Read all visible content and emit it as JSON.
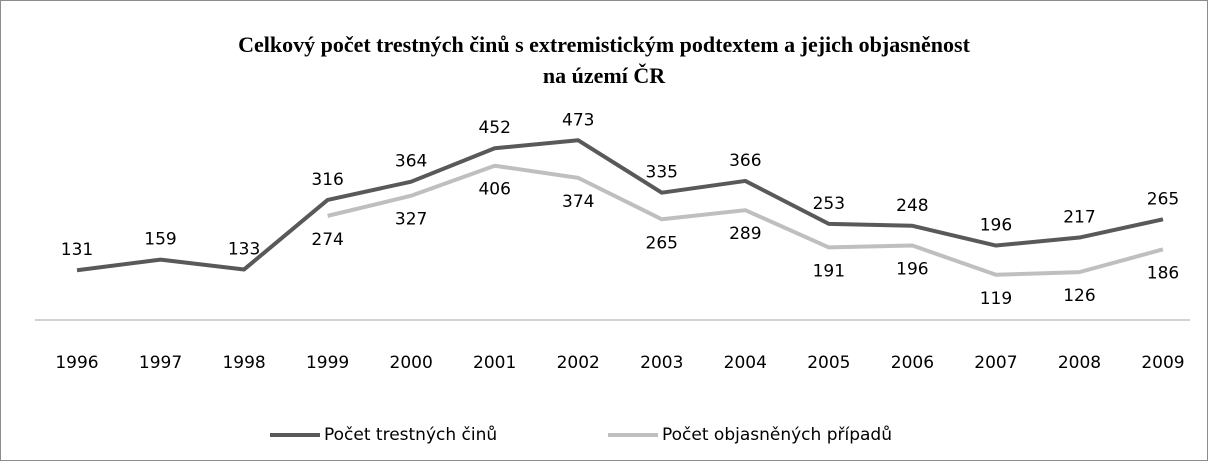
{
  "chart_data": {
    "type": "line",
    "title": [
      "Celkový počet trestných činů s extremistickým podtextem a jejich objasněnost",
      "na území ČR"
    ],
    "categories": [
      "1996",
      "1997",
      "1998",
      "1999",
      "2000",
      "2001",
      "2002",
      "2003",
      "2004",
      "2005",
      "2006",
      "2007",
      "2008",
      "2009"
    ],
    "series": [
      {
        "name": "Počet trestných činů",
        "color": "#595959",
        "values": [
          131,
          159,
          133,
          316,
          364,
          452,
          473,
          335,
          366,
          253,
          248,
          196,
          217,
          265
        ]
      },
      {
        "name": "Počet objasněných případů",
        "color": "#bfbfbf",
        "values": [
          null,
          null,
          null,
          274,
          327,
          406,
          374,
          265,
          289,
          191,
          196,
          119,
          126,
          186
        ]
      }
    ],
    "ylim": [
      0,
      500
    ],
    "legend": "bottom"
  }
}
